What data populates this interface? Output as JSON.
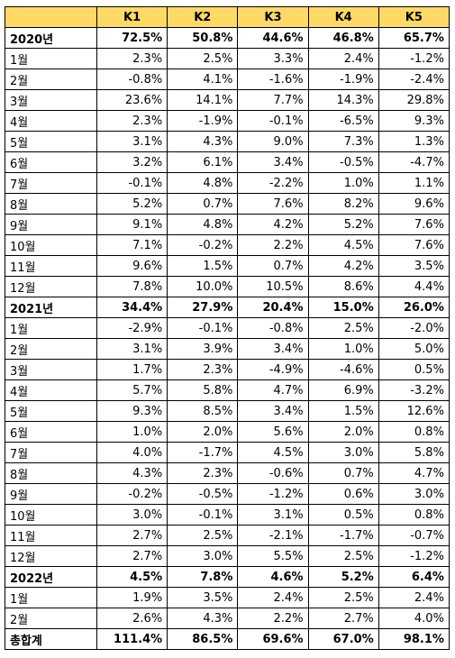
{
  "table": {
    "headers": [
      "",
      "K1",
      "K2",
      "K3",
      "K4",
      "K5"
    ],
    "rows": [
      {
        "label": "2020년",
        "bold": true,
        "values": [
          "72.5%",
          "50.8%",
          "44.6%",
          "46.8%",
          "65.7%"
        ]
      },
      {
        "label": "1월",
        "values": [
          "2.3%",
          "2.5%",
          "3.3%",
          "2.4%",
          "-1.2%"
        ]
      },
      {
        "label": "2월",
        "values": [
          "-0.8%",
          "4.1%",
          "-1.6%",
          "-1.9%",
          "-2.4%"
        ]
      },
      {
        "label": "3월",
        "values": [
          "23.6%",
          "14.1%",
          "7.7%",
          "14.3%",
          "29.8%"
        ]
      },
      {
        "label": "4월",
        "values": [
          "2.3%",
          "-1.9%",
          "-0.1%",
          "-6.5%",
          "9.3%"
        ]
      },
      {
        "label": "5월",
        "values": [
          "3.1%",
          "4.3%",
          "9.0%",
          "7.3%",
          "1.3%"
        ]
      },
      {
        "label": "6월",
        "values": [
          "3.2%",
          "6.1%",
          "3.4%",
          "-0.5%",
          "-4.7%"
        ]
      },
      {
        "label": "7월",
        "values": [
          "-0.1%",
          "4.8%",
          "-2.2%",
          "1.0%",
          "1.1%"
        ]
      },
      {
        "label": "8월",
        "values": [
          "5.2%",
          "0.7%",
          "7.6%",
          "8.2%",
          "9.6%"
        ]
      },
      {
        "label": "9월",
        "values": [
          "9.1%",
          "4.8%",
          "4.2%",
          "5.2%",
          "7.6%"
        ]
      },
      {
        "label": "10월",
        "values": [
          "7.1%",
          "-0.2%",
          "2.2%",
          "4.5%",
          "7.6%"
        ]
      },
      {
        "label": "11월",
        "values": [
          "9.6%",
          "1.5%",
          "0.7%",
          "4.2%",
          "3.5%"
        ]
      },
      {
        "label": "12월",
        "values": [
          "7.8%",
          "10.0%",
          "10.5%",
          "8.6%",
          "4.4%"
        ]
      },
      {
        "label": "2021년",
        "bold": true,
        "values": [
          "34.4%",
          "27.9%",
          "20.4%",
          "15.0%",
          "26.0%"
        ]
      },
      {
        "label": "1월",
        "values": [
          "-2.9%",
          "-0.1%",
          "-0.8%",
          "2.5%",
          "-2.0%"
        ]
      },
      {
        "label": "2월",
        "values": [
          "3.1%",
          "3.9%",
          "3.4%",
          "1.0%",
          "5.0%"
        ]
      },
      {
        "label": "3월",
        "values": [
          "1.7%",
          "2.3%",
          "-4.9%",
          "-4.6%",
          "0.5%"
        ]
      },
      {
        "label": "4월",
        "values": [
          "5.7%",
          "5.8%",
          "4.7%",
          "6.9%",
          "-3.2%"
        ]
      },
      {
        "label": "5월",
        "values": [
          "9.3%",
          "8.5%",
          "3.4%",
          "1.5%",
          "12.6%"
        ]
      },
      {
        "label": "6월",
        "values": [
          "1.0%",
          "2.0%",
          "5.6%",
          "2.0%",
          "0.8%"
        ]
      },
      {
        "label": "7월",
        "values": [
          "4.0%",
          "-1.7%",
          "4.5%",
          "3.0%",
          "5.8%"
        ]
      },
      {
        "label": "8월",
        "values": [
          "4.3%",
          "2.3%",
          "-0.6%",
          "0.7%",
          "4.7%"
        ]
      },
      {
        "label": "9월",
        "values": [
          "-0.2%",
          "-0.5%",
          "-1.2%",
          "0.6%",
          "3.0%"
        ]
      },
      {
        "label": "10월",
        "values": [
          "3.0%",
          "-0.1%",
          "3.1%",
          "0.5%",
          "0.8%"
        ]
      },
      {
        "label": "11월",
        "values": [
          "2.7%",
          "2.5%",
          "-2.1%",
          "-1.7%",
          "-0.7%"
        ]
      },
      {
        "label": "12월",
        "values": [
          "2.7%",
          "3.0%",
          "5.5%",
          "2.5%",
          "-1.2%"
        ]
      },
      {
        "label": "2022년",
        "bold": true,
        "values": [
          "4.5%",
          "7.8%",
          "4.6%",
          "5.2%",
          "6.4%"
        ]
      },
      {
        "label": "1월",
        "values": [
          "1.9%",
          "3.5%",
          "2.4%",
          "2.5%",
          "2.4%"
        ]
      },
      {
        "label": "2월",
        "values": [
          "2.6%",
          "4.3%",
          "2.2%",
          "2.7%",
          "4.0%"
        ]
      },
      {
        "label": "총합계",
        "bold": true,
        "values": [
          "111.4%",
          "86.5%",
          "69.6%",
          "67.0%",
          "98.1%"
        ]
      }
    ]
  },
  "colors": {
    "header_bg": "#ffd966",
    "border": "#000000"
  }
}
